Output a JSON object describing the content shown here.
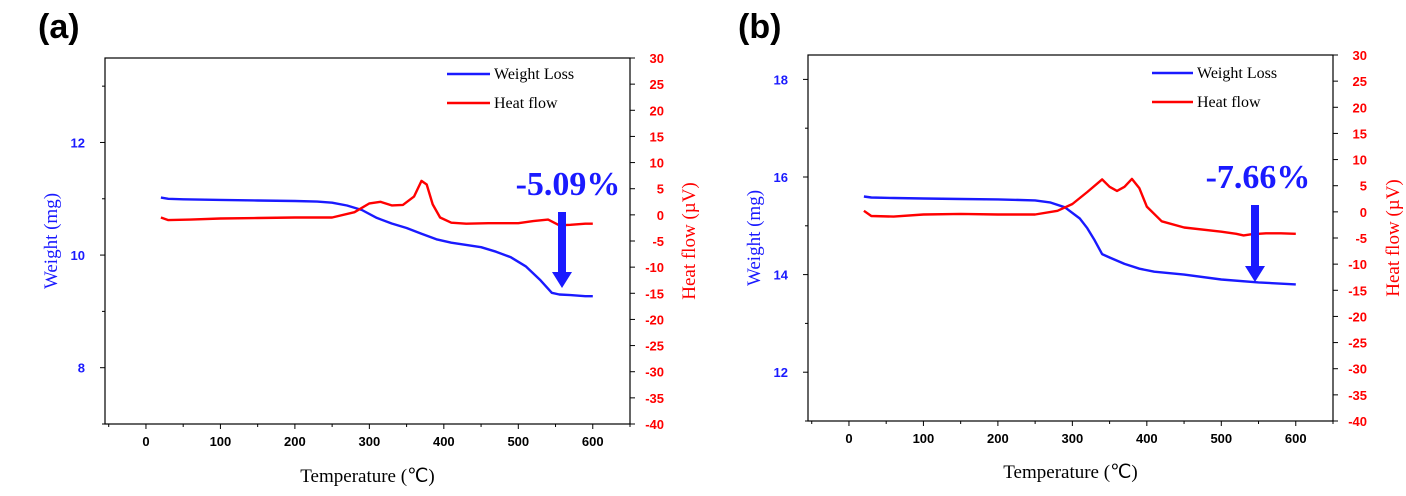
{
  "chart_data": [
    {
      "panel_label": "(a)",
      "type": "line",
      "xlabel": "Temperature (℃)",
      "ylabel_left": "Weight (mg)",
      "ylabel_right": "Heat flow (µV)",
      "xlim": [
        -55,
        650
      ],
      "ylim_left": [
        7.0,
        13.5
      ],
      "ylim_right": [
        -40,
        30
      ],
      "xticks": [
        "0",
        "100",
        "200",
        "300",
        "400",
        "500",
        "600"
      ],
      "yticks_left": [
        "8",
        "10",
        "12"
      ],
      "yticks_right": [
        "30",
        "25",
        "20",
        "15",
        "10",
        "5",
        "0",
        "-5",
        "-10",
        "-15",
        "-20",
        "-25",
        "-30",
        "-35",
        "-40"
      ],
      "legend": [
        "Weight Loss",
        "Heat flow"
      ],
      "legend_position": "top-right",
      "annotation": "-5.09%",
      "colors": {
        "weight": "#1a1aff",
        "heat": "#ff0000"
      },
      "series": [
        {
          "name": "Weight Loss",
          "axis": "left",
          "x": [
            20,
            30,
            50,
            100,
            150,
            200,
            230,
            250,
            270,
            290,
            310,
            330,
            350,
            370,
            390,
            410,
            430,
            450,
            470,
            490,
            510,
            530,
            545,
            555,
            570,
            590,
            600
          ],
          "y": [
            11.02,
            11.0,
            10.99,
            10.98,
            10.97,
            10.96,
            10.95,
            10.93,
            10.88,
            10.8,
            10.66,
            10.56,
            10.48,
            10.38,
            10.28,
            10.22,
            10.18,
            10.14,
            10.06,
            9.96,
            9.8,
            9.55,
            9.33,
            9.3,
            9.29,
            9.27,
            9.27
          ]
        },
        {
          "name": "Heat flow",
          "axis": "right",
          "x": [
            20,
            30,
            60,
            100,
            150,
            200,
            250,
            280,
            300,
            315,
            330,
            345,
            360,
            370,
            377,
            385,
            395,
            410,
            430,
            460,
            500,
            520,
            540,
            555,
            570,
            590,
            600
          ],
          "y": [
            -0.5,
            -1.0,
            -0.9,
            -0.7,
            -0.6,
            -0.5,
            -0.5,
            0.5,
            2.2,
            2.5,
            1.8,
            1.9,
            3.5,
            6.5,
            5.8,
            2.0,
            -0.5,
            -1.5,
            -1.7,
            -1.6,
            -1.6,
            -1.2,
            -0.9,
            -2.0,
            -1.9,
            -1.7,
            -1.7
          ]
        }
      ]
    },
    {
      "panel_label": "(b)",
      "type": "line",
      "xlabel": "Temperature (℃)",
      "ylabel_left": "Weight (mg)",
      "ylabel_right": "Heat flow (µV)",
      "xlim": [
        -55,
        650
      ],
      "ylim_left": [
        11.0,
        18.5
      ],
      "ylim_right": [
        -40,
        30
      ],
      "xticks": [
        "0",
        "100",
        "200",
        "300",
        "400",
        "500",
        "600"
      ],
      "yticks_left": [
        "12",
        "14",
        "16",
        "18"
      ],
      "yticks_right": [
        "30",
        "25",
        "20",
        "15",
        "10",
        "5",
        "0",
        "-5",
        "-10",
        "-15",
        "-20",
        "-25",
        "-30",
        "-35",
        "-40"
      ],
      "legend": [
        "Weight Loss",
        "Heat flow"
      ],
      "legend_position": "top-right",
      "annotation": "-7.66%",
      "colors": {
        "weight": "#1a1aff",
        "heat": "#ff0000"
      },
      "series": [
        {
          "name": "Weight Loss",
          "axis": "left",
          "x": [
            20,
            30,
            60,
            100,
            150,
            200,
            250,
            270,
            290,
            310,
            320,
            330,
            340,
            350,
            370,
            390,
            410,
            450,
            500,
            550,
            600
          ],
          "y": [
            15.6,
            15.58,
            15.57,
            15.56,
            15.55,
            15.54,
            15.52,
            15.48,
            15.38,
            15.15,
            14.95,
            14.7,
            14.42,
            14.35,
            14.22,
            14.12,
            14.06,
            14.0,
            13.9,
            13.84,
            13.8
          ]
        },
        {
          "name": "Heat flow",
          "axis": "right",
          "x": [
            20,
            30,
            60,
            100,
            150,
            200,
            250,
            280,
            300,
            320,
            340,
            350,
            360,
            370,
            380,
            390,
            400,
            420,
            450,
            500,
            520,
            530,
            540,
            560,
            580,
            600
          ],
          "y": [
            0.2,
            -0.8,
            -0.9,
            -0.5,
            -0.4,
            -0.5,
            -0.5,
            0.2,
            1.5,
            3.8,
            6.2,
            4.8,
            4.0,
            4.8,
            6.3,
            4.5,
            1.0,
            -1.8,
            -3.0,
            -3.8,
            -4.2,
            -4.5,
            -4.3,
            -4.1,
            -4.1,
            -4.2
          ]
        }
      ]
    }
  ]
}
